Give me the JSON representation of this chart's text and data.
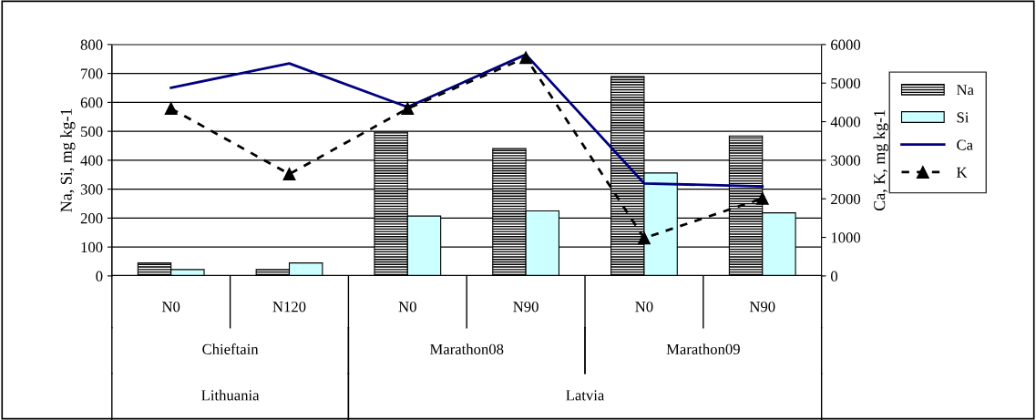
{
  "chart_data": {
    "type": "bar",
    "categories": [
      "N0",
      "N120",
      "N0",
      "N90",
      "N0",
      "N90"
    ],
    "ylabel": "Na, Si, mg kg-1",
    "y2label": "Ca, K, mg kg-1",
    "ylim": [
      0,
      800
    ],
    "yticks": [
      0,
      100,
      200,
      300,
      400,
      500,
      600,
      700,
      800
    ],
    "y2lim": [
      0,
      6000
    ],
    "y2ticks": [
      0,
      1000,
      2000,
      3000,
      4000,
      5000,
      6000
    ],
    "grid": "y",
    "legend": "right",
    "annotations": [
      "Chieftain",
      "Marathon08",
      "Marathon09",
      "Lithuania",
      "Latvia"
    ],
    "series": [
      {
        "name": "Na",
        "color": "#000000",
        "values": [
          45,
          22,
          498,
          440,
          689,
          484
        ]
      },
      {
        "name": "Si",
        "color": "#ccffff",
        "values": [
          22,
          45,
          207,
          225,
          356,
          218
        ]
      },
      {
        "name": "Ca",
        "type": "line",
        "axis": "y2",
        "color": "#000080",
        "marker": "none",
        "line_style": "solid",
        "values": [
          4880,
          5510,
          4380,
          5740,
          2400,
          2320
        ]
      },
      {
        "name": "K",
        "type": "line",
        "axis": "y2",
        "color": "#000000",
        "marker": "triangle",
        "line_style": "dashed",
        "values": [
          4340,
          2640,
          4340,
          5660,
          980,
          2010
        ]
      }
    ]
  }
}
